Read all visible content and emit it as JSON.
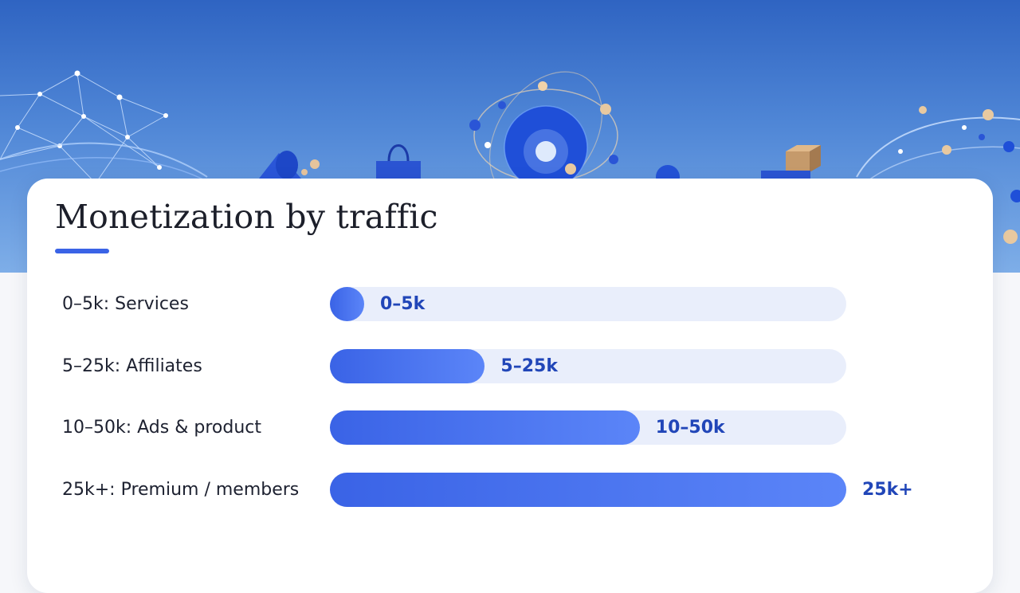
{
  "colors": {
    "accent": "#3a63e6",
    "bar_fill_start": "#3a63e6",
    "bar_fill_end": "#5b85f8",
    "track": "#e9eefb",
    "value_text": "#2146b8",
    "label_text": "#1d2130",
    "hero_top": "#2f64c2",
    "hero_bottom": "#7eaee8"
  },
  "hero": {
    "illustration_icons": [
      "network-mesh-icon",
      "megaphone-icon",
      "shopping-bag-icon",
      "globe-icon",
      "box-icon",
      "orbit-dots-icon"
    ]
  },
  "chart_data": {
    "type": "bar",
    "orientation": "horizontal",
    "title": "Monetization by traffic",
    "categories": [
      "0–5k: Services",
      "5–25k: Affiliates",
      "10–50k: Ads & product",
      "25k+: Premium / members"
    ],
    "data_labels": [
      "0–5k",
      "5–25k",
      "10–50k",
      "25k+"
    ],
    "values": [
      0.065,
      0.3,
      0.6,
      1.0
    ],
    "xlim": [
      0,
      1
    ],
    "grid": false,
    "legend": "none"
  }
}
